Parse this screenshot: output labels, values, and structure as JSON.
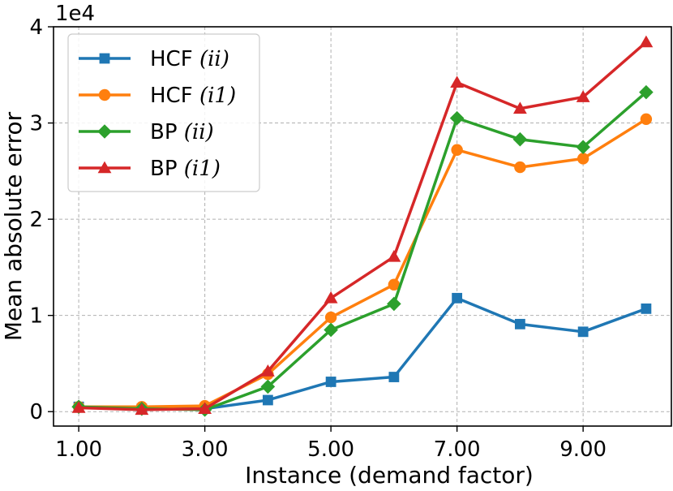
{
  "chart_data": {
    "type": "line",
    "title": "",
    "xlabel": "Instance (demand factor)",
    "ylabel": "Mean absolute error",
    "y_multiplier_label": "1e4",
    "x": [
      1,
      2,
      3,
      4,
      5,
      6,
      7,
      8,
      9,
      10
    ],
    "xlim": [
      0.6,
      10.4
    ],
    "ylim": [
      -0.15,
      4.0
    ],
    "x_ticks": [
      1,
      3,
      5,
      7,
      9
    ],
    "x_tick_labels": [
      "1.00",
      "3.00",
      "5.00",
      "7.00",
      "9.00"
    ],
    "y_ticks": [
      0,
      1,
      2,
      3,
      4
    ],
    "y_tick_labels": [
      "0",
      "1",
      "2",
      "3",
      "4"
    ],
    "grid": true,
    "legend_position": "top-left",
    "series": [
      {
        "name": "HCF",
        "name_suffix": "(ii)",
        "color": "#1f77b4",
        "marker": "square",
        "values": [
          0.05,
          0.03,
          0.03,
          0.12,
          0.31,
          0.36,
          1.18,
          0.91,
          0.83,
          1.07
        ]
      },
      {
        "name": "HCF",
        "name_suffix": "(i1)",
        "color": "#ff7f0e",
        "marker": "circle",
        "values": [
          0.05,
          0.05,
          0.06,
          0.39,
          0.98,
          1.32,
          2.72,
          2.54,
          2.63,
          3.04
        ]
      },
      {
        "name": "BP",
        "name_suffix": "(ii)",
        "color": "#2ca02c",
        "marker": "diamond",
        "values": [
          0.05,
          0.03,
          0.02,
          0.26,
          0.85,
          1.12,
          3.05,
          2.83,
          2.75,
          3.32
        ]
      },
      {
        "name": "BP",
        "name_suffix": "(i1)",
        "color": "#d62728",
        "marker": "triangle",
        "values": [
          0.04,
          0.02,
          0.03,
          0.42,
          1.18,
          1.61,
          3.42,
          3.15,
          3.27,
          3.84
        ]
      }
    ]
  }
}
